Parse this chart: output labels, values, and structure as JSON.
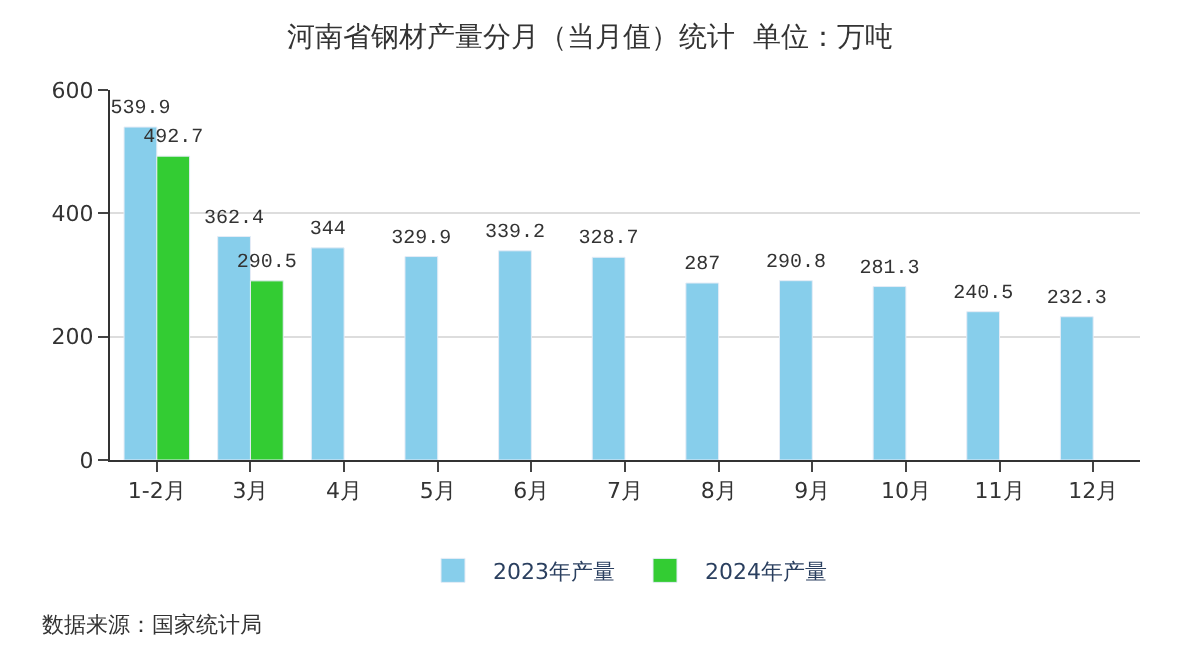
{
  "chart_data": {
    "type": "bar",
    "title": "河南省钢材产量分月（当月值）统计  单位：万吨",
    "categories": [
      "1-2月",
      "3月",
      "4月",
      "5月",
      "6月",
      "7月",
      "8月",
      "9月",
      "10月",
      "11月",
      "12月"
    ],
    "series": [
      {
        "name": "2023年产量",
        "color": "#87ceeb",
        "values": [
          539.9,
          362.4,
          344,
          329.9,
          339.2,
          328.7,
          287,
          290.8,
          281.3,
          240.5,
          232.3
        ]
      },
      {
        "name": "2024年产量",
        "color": "#33cc33",
        "values": [
          492.7,
          290.5,
          null,
          null,
          null,
          null,
          null,
          null,
          null,
          null,
          null
        ]
      }
    ],
    "ylim": [
      0,
      600
    ],
    "yticks": [
      0,
      200,
      400,
      600
    ],
    "grid": "y",
    "legend": "bottom",
    "data_labels": true,
    "annotations": [
      "数据来源：国家统计局"
    ]
  }
}
